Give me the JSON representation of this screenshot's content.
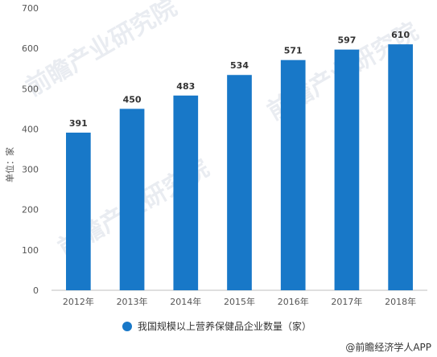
{
  "chart_data": {
    "type": "bar",
    "categories": [
      "2012年",
      "2013年",
      "2014年",
      "2015年",
      "2016年",
      "2017年",
      "2018年"
    ],
    "series": [
      {
        "name": "我国规模以上营养保健品企业数量（家）",
        "values": [
          391,
          450,
          483,
          534,
          571,
          597,
          610
        ]
      }
    ],
    "ylabel": "单位：家",
    "ylim": [
      0,
      700
    ],
    "yticks": [
      0,
      100,
      200,
      300,
      400,
      500,
      600,
      700
    ],
    "grid": false,
    "legend_position": "bottom",
    "bar_color": "#1878c8"
  },
  "source": "@前瞻经济学人APP",
  "watermark": "前瞻产业研究院"
}
